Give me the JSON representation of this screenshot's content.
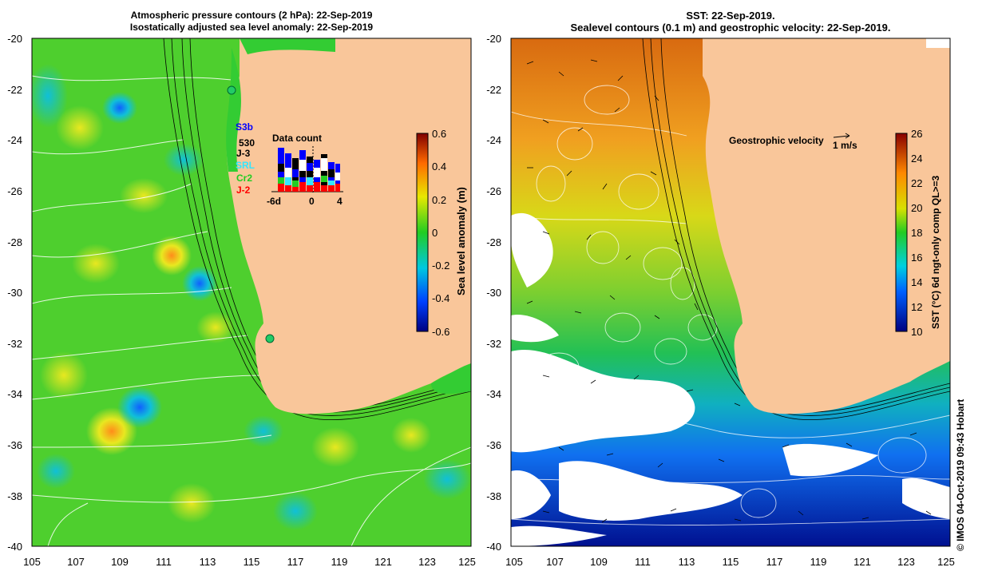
{
  "left_panel": {
    "title_line1": "Atmospheric pressure contours (2 hPa): 22-Sep-2019",
    "title_line2": "Isostatically adjusted sea level anomaly: 22-Sep-2019",
    "colorbar": {
      "label": "Sea level anomaly (m)",
      "ticks": [
        "0.6",
        "0.4",
        "0.2",
        "0",
        "-0.2",
        "-0.4",
        "-0.6"
      ],
      "min": -0.6,
      "max": 0.6
    },
    "inset": {
      "title": "Data count",
      "axis_ticks": [
        "-6d",
        "0",
        "4"
      ],
      "satellites": [
        {
          "name": "S3b",
          "color": "#0000ff"
        },
        {
          "name": "530",
          "color": "#000000"
        },
        {
          "name": "J-3",
          "color": "#000000"
        },
        {
          "name": "SRL",
          "color": "#33e6ff"
        },
        {
          "name": "Cr2",
          "color": "#22cc22"
        },
        {
          "name": "J-2",
          "color": "#ff0000"
        }
      ]
    }
  },
  "right_panel": {
    "title_line1": "SST: 22-Sep-2019.",
    "title_line2": "Sealevel contours (0.1 m) and geostrophic velocity: 22-Sep-2019.",
    "velocity_legend": "Geostrophic velocity",
    "velocity_scale": "1 m/s",
    "colorbar": {
      "label": "SST (°C) 6d ngt-only comp QL>=3",
      "ticks": [
        "26",
        "24",
        "22",
        "20",
        "18",
        "16",
        "14",
        "12",
        "10"
      ],
      "min": 10,
      "max": 26
    }
  },
  "axes": {
    "lat_ticks": [
      "-20",
      "-22",
      "-24",
      "-26",
      "-28",
      "-30",
      "-32",
      "-34",
      "-36",
      "-38",
      "-40"
    ],
    "lon_ticks": [
      "105",
      "107",
      "109",
      "111",
      "113",
      "115",
      "117",
      "119",
      "121",
      "123",
      "125"
    ]
  },
  "credit": "© IMOS 04-Oct-2019 09:43 Hobart",
  "colors": {
    "land": "#f9c69a",
    "ocean_green": "#33cc33"
  }
}
